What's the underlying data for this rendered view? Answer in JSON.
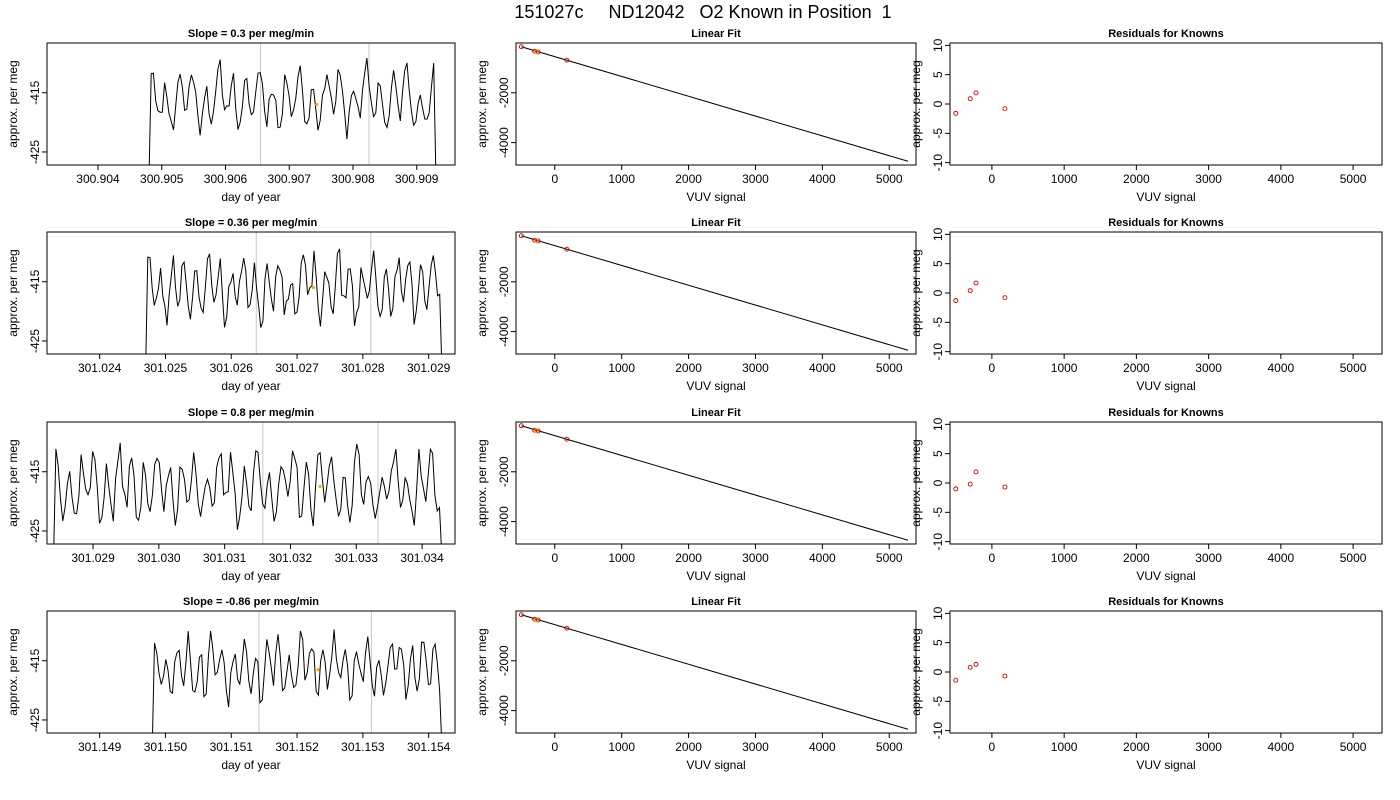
{
  "figure": {
    "title": "151027c     ND12042   O2 Known in Position  1"
  },
  "colors": {
    "trace": "#000000",
    "marker_orange": "#FFA500",
    "marker_red": "#CC0000",
    "grid_vline": "#C8C8C8"
  },
  "chart_data": [
    {
      "type": "line",
      "row": 0,
      "column": "trace",
      "title": "Slope =  0.3  per meg/min",
      "xlabel": "day of year",
      "ylabel": "approx. per meg",
      "xlim": [
        300.9032,
        300.9096
      ],
      "ylim": [
        -427.2,
        -406.6
      ],
      "xticks": [
        300.904,
        300.905,
        300.906,
        300.907,
        300.908,
        300.909
      ],
      "xtick_labels": [
        "300.904",
        "300.905",
        "300.906",
        "300.907",
        "300.908",
        "300.909"
      ],
      "yticks": [
        -415,
        -425
      ],
      "ytick_labels": [
        "-415",
        "-425"
      ],
      "trace": {
        "x_start": 300.9048,
        "x_end": 300.9093,
        "points": 130,
        "mean": -416,
        "amp": 3.8,
        "period": 0.00021,
        "seed": 11
      },
      "vlines": [
        300.90655,
        300.90825
      ],
      "marker": {
        "x": 300.90743,
        "y": -417
      }
    },
    {
      "type": "line",
      "row": 0,
      "column": "fit",
      "title": "Linear Fit",
      "xlabel": "VUV signal",
      "ylabel": "approx. per meg",
      "xlim": [
        -580,
        5400
      ],
      "ylim": [
        -4900,
        0
      ],
      "xticks": [
        0,
        1000,
        2000,
        3000,
        4000,
        5000
      ],
      "xtick_labels": [
        "0",
        "1000",
        "2000",
        "3000",
        "4000",
        "5000"
      ],
      "yticks": [
        -2000,
        -4000
      ],
      "ytick_labels": [
        "-2000",
        "-4000"
      ],
      "line": {
        "x": [
          -500,
          5280
        ],
        "y": [
          -150,
          -4750
        ]
      },
      "points_red": [
        {
          "x": -500,
          "y": -150
        },
        {
          "x": -300,
          "y": -330
        },
        {
          "x": -250,
          "y": -360
        },
        {
          "x": 180,
          "y": -690
        }
      ],
      "points_orange": [
        {
          "x": -280,
          "y": -340
        }
      ]
    },
    {
      "type": "scatter",
      "row": 0,
      "column": "residual",
      "title": "Residuals for Knowns",
      "xlabel": "VUV signal",
      "ylabel": "approx. per meg",
      "xlim": [
        -580,
        5400
      ],
      "ylim": [
        -10.4,
        10.4
      ],
      "xticks": [
        0,
        1000,
        2000,
        3000,
        4000,
        5000
      ],
      "xtick_labels": [
        "0",
        "1000",
        "2000",
        "3000",
        "4000",
        "5000"
      ],
      "yticks": [
        10,
        5,
        0,
        -5,
        -10
      ],
      "ytick_labels": [
        "10",
        "5",
        "0",
        "-5",
        "-10"
      ],
      "points": [
        {
          "x": -500,
          "y": -1.6
        },
        {
          "x": -300,
          "y": 0.9
        },
        {
          "x": -220,
          "y": 1.9
        },
        {
          "x": 180,
          "y": -0.8
        }
      ]
    },
    {
      "type": "line",
      "row": 1,
      "column": "trace",
      "title": "Slope =  0.36  per meg/min",
      "xlabel": "day of year",
      "ylabel": "approx. per meg",
      "xlim": [
        301.0232,
        301.0294
      ],
      "ylim": [
        -427.2,
        -406.6
      ],
      "xticks": [
        301.024,
        301.025,
        301.026,
        301.027,
        301.028,
        301.029
      ],
      "xtick_labels": [
        "301.024",
        "301.025",
        "301.026",
        "301.027",
        "301.028",
        "301.029"
      ],
      "yticks": [
        -415,
        -425
      ],
      "ytick_labels": [
        "-415",
        "-425"
      ],
      "trace": {
        "x_start": 301.0247,
        "x_end": 301.0292,
        "points": 140,
        "mean": -416,
        "amp": 4.2,
        "period": 0.00018,
        "seed": 23
      },
      "vlines": [
        301.02638,
        301.02812
      ],
      "marker": {
        "x": 301.02725,
        "y": -416
      }
    },
    {
      "type": "line",
      "row": 1,
      "column": "fit",
      "title": "Linear Fit",
      "xlabel": "VUV signal",
      "ylabel": "approx. per meg",
      "xlim": [
        -580,
        5400
      ],
      "ylim": [
        -4900,
        0
      ],
      "xticks": [
        0,
        1000,
        2000,
        3000,
        4000,
        5000
      ],
      "xtick_labels": [
        "0",
        "1000",
        "2000",
        "3000",
        "4000",
        "5000"
      ],
      "yticks": [
        -2000,
        -4000
      ],
      "ytick_labels": [
        "-2000",
        "-4000"
      ],
      "line": {
        "x": [
          -500,
          5280
        ],
        "y": [
          -150,
          -4750
        ]
      },
      "points_red": [
        {
          "x": -500,
          "y": -150
        },
        {
          "x": -300,
          "y": -330
        },
        {
          "x": -250,
          "y": -360
        },
        {
          "x": 180,
          "y": -690
        }
      ],
      "points_orange": [
        {
          "x": -280,
          "y": -340
        }
      ]
    },
    {
      "type": "scatter",
      "row": 1,
      "column": "residual",
      "title": "Residuals for Knowns",
      "xlabel": "VUV signal",
      "ylabel": "approx. per meg",
      "xlim": [
        -580,
        5400
      ],
      "ylim": [
        -10.4,
        10.4
      ],
      "xticks": [
        0,
        1000,
        2000,
        3000,
        4000,
        5000
      ],
      "xtick_labels": [
        "0",
        "1000",
        "2000",
        "3000",
        "4000",
        "5000"
      ],
      "yticks": [
        10,
        5,
        0,
        -5,
        -10
      ],
      "ytick_labels": [
        "10",
        "5",
        "0",
        "-5",
        "-10"
      ],
      "points": [
        {
          "x": -500,
          "y": -1.3
        },
        {
          "x": -300,
          "y": 0.4
        },
        {
          "x": -220,
          "y": 1.7
        },
        {
          "x": 180,
          "y": -0.8
        }
      ]
    },
    {
      "type": "line",
      "row": 2,
      "column": "trace",
      "title": "Slope =  0.8  per meg/min",
      "xlabel": "day of year",
      "ylabel": "approx. per meg",
      "xlim": [
        301.0283,
        301.0345
      ],
      "ylim": [
        -427.2,
        -406.6
      ],
      "xticks": [
        301.029,
        301.03,
        301.031,
        301.032,
        301.033,
        301.034
      ],
      "xtick_labels": [
        "301.029",
        "301.030",
        "301.031",
        "301.032",
        "301.033",
        "301.034"
      ],
      "yticks": [
        -415,
        -425
      ],
      "ytick_labels": [
        "-415",
        "-425"
      ],
      "trace": {
        "x_start": 301.0284,
        "x_end": 301.0343,
        "points": 170,
        "mean": -417.5,
        "amp": 4.3,
        "period": 0.00019,
        "seed": 37
      },
      "vlines": [
        301.03158,
        301.03333
      ],
      "marker": {
        "x": 301.03245,
        "y": -417.5
      }
    },
    {
      "type": "line",
      "row": 2,
      "column": "fit",
      "title": "Linear Fit",
      "xlabel": "VUV signal",
      "ylabel": "approx. per meg",
      "xlim": [
        -580,
        5400
      ],
      "ylim": [
        -4900,
        0
      ],
      "xticks": [
        0,
        1000,
        2000,
        3000,
        4000,
        5000
      ],
      "xtick_labels": [
        "0",
        "1000",
        "2000",
        "3000",
        "4000",
        "5000"
      ],
      "yticks": [
        -2000,
        -4000
      ],
      "ytick_labels": [
        "-2000",
        "-4000"
      ],
      "line": {
        "x": [
          -500,
          5280
        ],
        "y": [
          -150,
          -4750
        ]
      },
      "points_red": [
        {
          "x": -500,
          "y": -150
        },
        {
          "x": -300,
          "y": -330
        },
        {
          "x": -250,
          "y": -360
        },
        {
          "x": 180,
          "y": -690
        }
      ],
      "points_orange": [
        {
          "x": -280,
          "y": -340
        }
      ]
    },
    {
      "type": "scatter",
      "row": 2,
      "column": "residual",
      "title": "Residuals for Knowns",
      "xlabel": "VUV signal",
      "ylabel": "approx. per meg",
      "xlim": [
        -580,
        5400
      ],
      "ylim": [
        -10.4,
        10.4
      ],
      "xticks": [
        0,
        1000,
        2000,
        3000,
        4000,
        5000
      ],
      "xtick_labels": [
        "0",
        "1000",
        "2000",
        "3000",
        "4000",
        "5000"
      ],
      "yticks": [
        10,
        5,
        0,
        -5,
        -10
      ],
      "ytick_labels": [
        "10",
        "5",
        "0",
        "-5",
        "-10"
      ],
      "points": [
        {
          "x": -500,
          "y": -1.0
        },
        {
          "x": -300,
          "y": -0.2
        },
        {
          "x": -220,
          "y": 1.9
        },
        {
          "x": 180,
          "y": -0.7
        }
      ]
    },
    {
      "type": "line",
      "row": 3,
      "column": "trace",
      "title": "Slope =  -0.86  per meg/min",
      "xlabel": "day of year",
      "ylabel": "approx. per meg",
      "xlim": [
        301.1482,
        301.1544
      ],
      "ylim": [
        -427.2,
        -406.6
      ],
      "xticks": [
        301.149,
        301.15,
        301.151,
        301.152,
        301.153,
        301.154
      ],
      "xtick_labels": [
        "301.149",
        "301.150",
        "301.151",
        "301.152",
        "301.153",
        "301.154"
      ],
      "yticks": [
        -415,
        -425
      ],
      "ytick_labels": [
        "-415",
        "-425"
      ],
      "trace": {
        "x_start": 301.1498,
        "x_end": 301.1542,
        "points": 130,
        "mean": -416,
        "amp": 3.9,
        "period": 0.00017,
        "seed": 53
      },
      "vlines": [
        301.15142,
        301.15313
      ],
      "marker": {
        "x": 301.15232,
        "y": -416.5
      }
    },
    {
      "type": "line",
      "row": 3,
      "column": "fit",
      "title": "Linear Fit",
      "xlabel": "VUV signal",
      "ylabel": "approx. per meg",
      "xlim": [
        -580,
        5400
      ],
      "ylim": [
        -4900,
        0
      ],
      "xticks": [
        0,
        1000,
        2000,
        3000,
        4000,
        5000
      ],
      "xtick_labels": [
        "0",
        "1000",
        "2000",
        "3000",
        "4000",
        "5000"
      ],
      "yticks": [
        -2000,
        -4000
      ],
      "ytick_labels": [
        "-2000",
        "-4000"
      ],
      "line": {
        "x": [
          -500,
          5280
        ],
        "y": [
          -150,
          -4750
        ]
      },
      "points_red": [
        {
          "x": -500,
          "y": -150
        },
        {
          "x": -300,
          "y": -330
        },
        {
          "x": -250,
          "y": -360
        },
        {
          "x": 180,
          "y": -690
        }
      ],
      "points_orange": [
        {
          "x": -280,
          "y": -340
        }
      ]
    },
    {
      "type": "scatter",
      "row": 3,
      "column": "residual",
      "title": "Residuals for Knowns",
      "xlabel": "VUV signal",
      "ylabel": "approx. per meg",
      "xlim": [
        -580,
        5400
      ],
      "ylim": [
        -10.4,
        10.4
      ],
      "xticks": [
        0,
        1000,
        2000,
        3000,
        4000,
        5000
      ],
      "xtick_labels": [
        "0",
        "1000",
        "2000",
        "3000",
        "4000",
        "5000"
      ],
      "yticks": [
        10,
        5,
        0,
        -5,
        -10
      ],
      "ytick_labels": [
        "10",
        "5",
        "0",
        "-5",
        "-10"
      ],
      "points": [
        {
          "x": -500,
          "y": -1.4
        },
        {
          "x": -300,
          "y": 0.8
        },
        {
          "x": -220,
          "y": 1.3
        },
        {
          "x": 180,
          "y": -0.7
        }
      ]
    }
  ]
}
